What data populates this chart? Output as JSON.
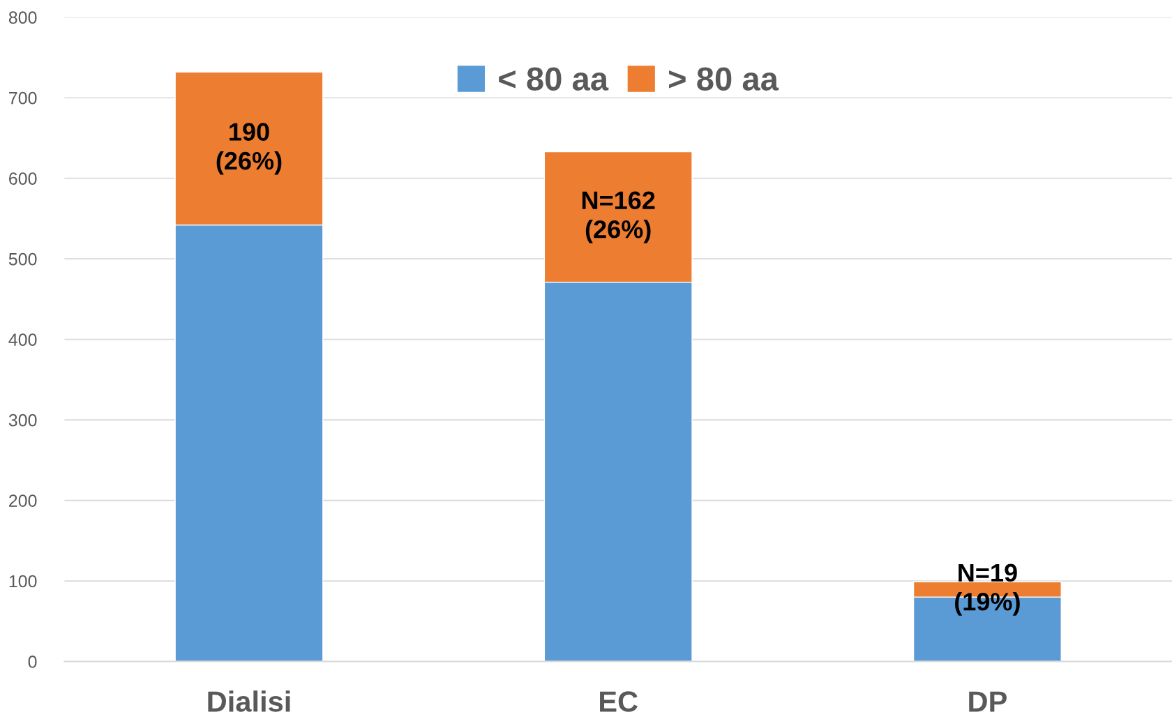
{
  "chart_data": {
    "type": "bar",
    "stacked": true,
    "categories": [
      "Dialisi",
      "EC",
      "DP"
    ],
    "series": [
      {
        "name": "< 80 aa",
        "color": "#5b9bd5",
        "values": [
          542,
          471,
          80
        ]
      },
      {
        "name": "> 80 aa",
        "color": "#ed7d31",
        "values": [
          190,
          162,
          19
        ],
        "value_labels": [
          "190\n(26%)",
          "N=162\n(26%)",
          "N=19\n(19%)"
        ]
      }
    ],
    "ylim": [
      0,
      800
    ],
    "yticks": [
      0,
      100,
      200,
      300,
      400,
      500,
      600,
      700,
      800
    ],
    "grid": "y",
    "legend": "top"
  }
}
